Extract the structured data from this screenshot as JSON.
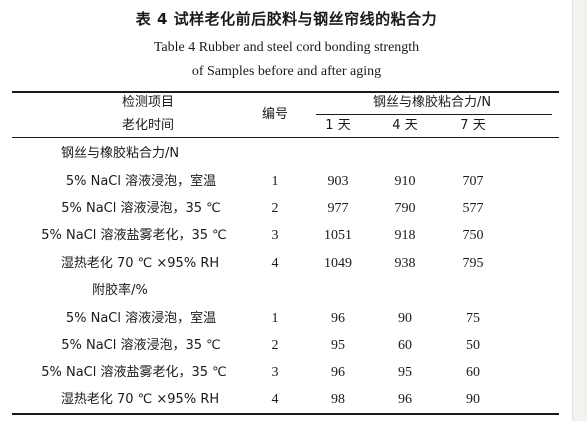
{
  "title_cn": "表 4   试样老化前后胶料与钢丝帘线的粘合力",
  "title_en_line1": "Table 4   Rubber and steel cord bonding strength",
  "title_en_line2": "of Samples before and after aging",
  "header": {
    "item_label": "检测项目",
    "aging_time_label": "老化时间",
    "number_label": "编号",
    "group_label": "钢丝与橡胶粘合力/N",
    "days": [
      "1 天",
      "4 天",
      "7 天"
    ]
  },
  "sections": [
    {
      "title": "钢丝与橡胶粘合力/N",
      "rows": [
        {
          "label": "5% NaCl 溶液浸泡，室温",
          "no": "1",
          "values": [
            "903",
            "910",
            "707"
          ]
        },
        {
          "label": "5% NaCl 溶液浸泡，35 ℃",
          "no": "2",
          "values": [
            "977",
            "790",
            "577"
          ]
        },
        {
          "label": "5% NaCl 溶液盐雾老化，35 ℃",
          "no": "3",
          "values": [
            "1051",
            "918",
            "750"
          ]
        },
        {
          "label": "湿热老化 70 ℃ ×95% RH",
          "no": "4",
          "values": [
            "1049",
            "938",
            "795"
          ]
        }
      ]
    },
    {
      "title": "附胶率/%",
      "rows": [
        {
          "label": "5% NaCl 溶液浸泡，室温",
          "no": "1",
          "values": [
            "96",
            "90",
            "75"
          ]
        },
        {
          "label": "5% NaCl 溶液浸泡，35 ℃",
          "no": "2",
          "values": [
            "95",
            "60",
            "50"
          ]
        },
        {
          "label": "5% NaCl 溶液盐雾老化，35 ℃",
          "no": "3",
          "values": [
            "96",
            "95",
            "60"
          ]
        },
        {
          "label": "湿热老化 70 ℃ ×95% RH",
          "no": "4",
          "values": [
            "98",
            "96",
            "90"
          ]
        }
      ]
    }
  ]
}
